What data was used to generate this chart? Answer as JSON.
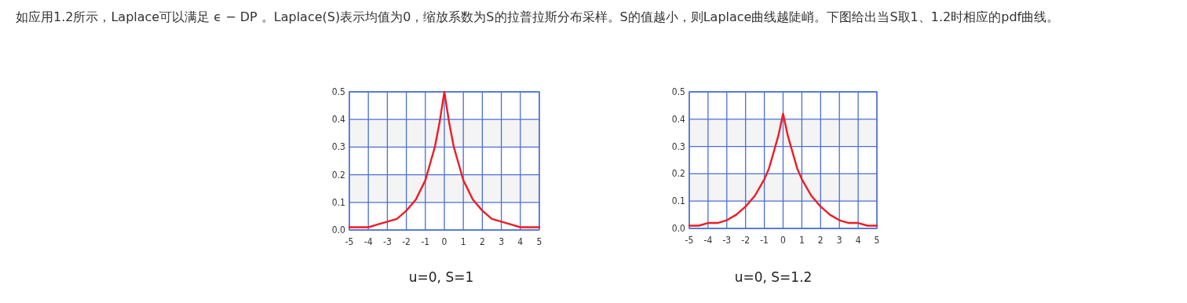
{
  "chart_data": [
    {
      "type": "line",
      "title": "如应用1.2所示，Laplace可以满足 ϵ − DP 。Laplace(S)表示均值为0，缩放系数为S的拉普拉斯分布采样。S的值越小，则Laplace曲线越陡峭。下图给出当S取1、1.2时相应的pdf曲线。",
      "annotations": [
        "u=0, S=1"
      ],
      "x": [
        -5,
        -4.5,
        -4,
        -3.5,
        -3,
        -2.5,
        -2,
        -1.5,
        -1,
        -0.75,
        -0.5,
        -0.25,
        0,
        0.25,
        0.5,
        0.75,
        1,
        1.5,
        2,
        2.5,
        3,
        3.5,
        4,
        4.5,
        5
      ],
      "series": [
        {
          "color": "#ee1c25",
          "values": [
            0.01,
            0.01,
            0.01,
            0.02,
            0.03,
            0.04,
            0.07,
            0.11,
            0.18,
            0.24,
            0.3,
            0.39,
            0.5,
            0.39,
            0.3,
            0.24,
            0.18,
            0.11,
            0.07,
            0.04,
            0.03,
            0.02,
            0.01,
            0.01,
            0.01
          ]
        }
      ],
      "xlim": [
        -5,
        5
      ],
      "ylim": [
        0,
        0.5
      ],
      "xticks": [
        -5,
        -4,
        -3,
        -2,
        -1,
        0,
        1,
        2,
        3,
        4,
        5
      ],
      "yticks": [
        {
          "value": 0,
          "label": "0.0"
        },
        0.1,
        0.2,
        0.3,
        0.4,
        0.5
      ],
      "grid": true,
      "bands": [
        {
          "axis": "y",
          "from": 0.1,
          "to": 0.2,
          "color": "#f4f4f4"
        },
        {
          "axis": "y",
          "from": 0.3,
          "to": 0.4,
          "color": "#f4f4f4"
        }
      ]
    },
    {
      "type": "line",
      "annotations": [
        "u=0, S=1.2"
      ],
      "x": [
        -5,
        -4.5,
        -4,
        -3.5,
        -3,
        -2.5,
        -2,
        -1.5,
        -1,
        -0.75,
        -0.5,
        -0.25,
        0,
        0.25,
        0.5,
        0.75,
        1,
        1.5,
        2,
        2.5,
        3,
        3.5,
        4,
        4.5,
        5
      ],
      "series": [
        {
          "color": "#ee1c25",
          "values": [
            0.01,
            0.01,
            0.02,
            0.02,
            0.03,
            0.05,
            0.08,
            0.12,
            0.18,
            0.22,
            0.28,
            0.34,
            0.42,
            0.34,
            0.28,
            0.22,
            0.18,
            0.12,
            0.08,
            0.05,
            0.03,
            0.02,
            0.02,
            0.01,
            0.01
          ]
        }
      ],
      "xlim": [
        -5,
        5
      ],
      "ylim": [
        0,
        0.5
      ],
      "xticks": [
        -5,
        -4,
        -3,
        -2,
        -1,
        0,
        1,
        2,
        3,
        4,
        5
      ],
      "yticks": [
        {
          "value": 0,
          "label": "0.0"
        },
        0.1,
        0.2,
        0.3,
        0.4,
        0.5
      ],
      "grid": true,
      "bands": [
        {
          "axis": "y",
          "from": 0.1,
          "to": 0.2,
          "color": "#f4f4f4"
        },
        {
          "axis": "y",
          "from": 0.3,
          "to": 0.4,
          "color": "#f4f4f4"
        }
      ]
    }
  ]
}
